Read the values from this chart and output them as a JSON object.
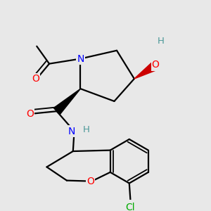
{
  "background_color": "#e8e8e8",
  "atom_colors": {
    "C": "#000000",
    "N": "#0000ff",
    "O": "#ff0000",
    "Cl": "#00aa00",
    "H_teal": "#4d9999",
    "H_gray": "#808080"
  },
  "bond_color": "#000000",
  "bond_width": 1.6,
  "figsize": [
    3.0,
    3.0
  ],
  "dpi": 100
}
